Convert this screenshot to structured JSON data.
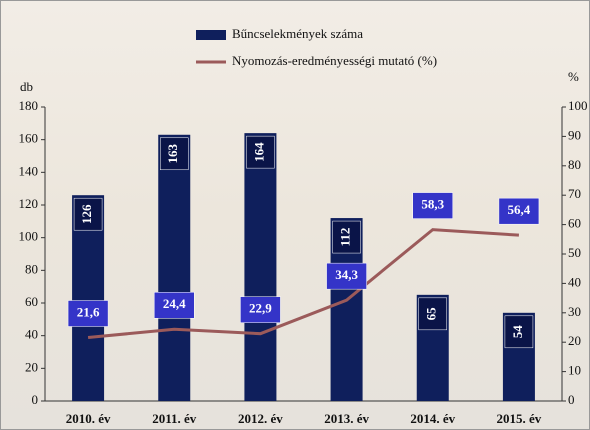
{
  "chart_data": {
    "type": "combo",
    "categories": [
      "2010. év",
      "2011. év",
      "2012. év",
      "2013. év",
      "2014. év",
      "2015. év"
    ],
    "series": [
      {
        "name": "Bűncselekmények száma",
        "type": "bar",
        "color": "#0f1f5c",
        "values": [
          126,
          163,
          164,
          112,
          65,
          54
        ]
      },
      {
        "name": "Nyomozás-eredményességi mutató (%)",
        "type": "line",
        "axis": "y2",
        "color": "#9b5a5a",
        "values": [
          21.6,
          24.4,
          22.9,
          34.3,
          58.3,
          56.4
        ],
        "value_labels": [
          "21,6",
          "24,4",
          "22,9",
          "34,3",
          "58,3",
          "56,4"
        ]
      }
    ],
    "y_label": "db",
    "y2_label": "%",
    "ylim": [
      0,
      180
    ],
    "yticks": [
      0,
      20,
      40,
      60,
      80,
      100,
      120,
      140,
      160,
      180
    ],
    "y2lim": [
      0,
      100
    ],
    "y2ticks": [
      0,
      10,
      20,
      30,
      40,
      50,
      60,
      70,
      80,
      90,
      100
    ],
    "legend": "top"
  }
}
